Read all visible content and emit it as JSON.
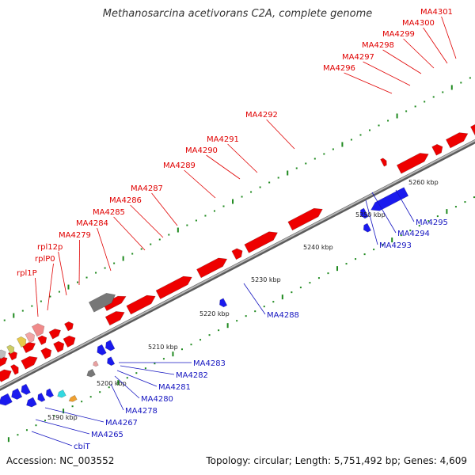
{
  "title": "Methanosarcina acetivorans C2A, complete genome",
  "footer": {
    "accession": "Accession: NC_003552",
    "summary": "Topology: circular; Length: 5,751,492 bp; Genes: 4,609"
  },
  "colors": {
    "forward_gene": "#ee0000",
    "reverse_gene": "#1a1aee",
    "forward_label": "#e00000",
    "reverse_label": "#1515c0",
    "backbone": "#8a8a8a",
    "tick": "#1f8a1f"
  },
  "scale_labels": [
    "5190 kbp",
    "5200 kbp",
    "5210 kbp",
    "5220 kbp",
    "5230 kbp",
    "5240 kbp",
    "5250 kbp",
    "5260 kbp"
  ],
  "forward_labels": [
    "MA4301",
    "MA4300",
    "MA4299",
    "MA4298",
    "MA4297",
    "MA4296",
    "MA4292",
    "MA4291",
    "MA4290",
    "MA4289",
    "MA4287",
    "MA4286",
    "MA4285",
    "MA4284",
    "MA4279",
    "rpl12p",
    "rplP0",
    "rpl1P"
  ],
  "reverse_labels": [
    "MA4295",
    "MA4294",
    "MA4293",
    "MA4288",
    "MA4283",
    "MA4282",
    "MA4281",
    "MA4280",
    "MA4278",
    "MA4267",
    "MA4265",
    "cbiT"
  ]
}
